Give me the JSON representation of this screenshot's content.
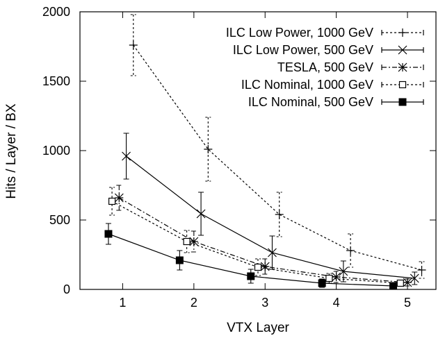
{
  "chart_data": {
    "type": "line",
    "xlabel": "VTX Layer",
    "ylabel": "Hits / Layer / BX",
    "xlim": [
      0.4,
      5.4
    ],
    "ylim": [
      0,
      2000
    ],
    "xticks": [
      1,
      2,
      3,
      4,
      5
    ],
    "yticks": [
      0,
      500,
      1000,
      1500,
      2000
    ],
    "legend_position": "top-right",
    "grid": false,
    "series": [
      {
        "name": "ILC Low Power, 1000 GeV",
        "line": "dotted",
        "marker": "plus",
        "x": [
          1.15,
          2.2,
          3.2,
          4.2,
          5.2
        ],
        "y": [
          1760,
          1010,
          540,
          280,
          140
        ],
        "err": [
          220,
          230,
          160,
          120,
          60
        ]
      },
      {
        "name": "ILC Low Power,  500 GeV",
        "line": "solid",
        "marker": "x",
        "x": [
          1.05,
          2.1,
          3.1,
          4.1,
          5.1
        ],
        "y": [
          960,
          545,
          265,
          130,
          80
        ],
        "err": [
          165,
          155,
          120,
          75,
          45
        ]
      },
      {
        "name": "TESLA,  500 GeV",
        "line": "dashdot",
        "marker": "asterisk",
        "x": [
          0.95,
          2.0,
          3.0,
          4.0,
          5.0
        ],
        "y": [
          660,
          345,
          165,
          90,
          50
        ],
        "err": [
          90,
          75,
          55,
          40,
          25
        ]
      },
      {
        "name": "ILC Nominal, 1000 GeV",
        "line": "dotted",
        "marker": "open-square",
        "x": [
          0.85,
          1.9,
          2.9,
          3.9,
          4.9
        ],
        "y": [
          635,
          345,
          160,
          80,
          45
        ],
        "err": [
          100,
          80,
          60,
          35,
          20
        ]
      },
      {
        "name": "ILC Nominal,  500 GeV",
        "line": "solid",
        "marker": "filled-square",
        "x": [
          0.8,
          1.8,
          2.8,
          3.8,
          4.8
        ],
        "y": [
          400,
          210,
          95,
          45,
          25
        ],
        "err": [
          75,
          70,
          50,
          30,
          15
        ]
      }
    ]
  }
}
